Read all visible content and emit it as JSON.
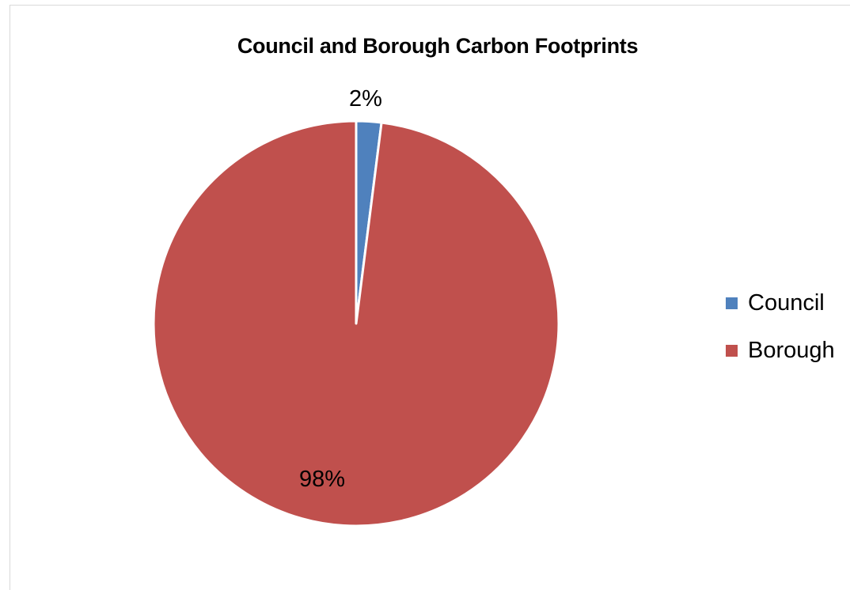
{
  "chart_data": {
    "type": "pie",
    "title": "Council and Borough Carbon Footprints",
    "categories": [
      "Council",
      "Borough"
    ],
    "values": [
      2,
      98
    ],
    "data_labels": [
      "2%",
      "98%"
    ],
    "colors": [
      "#4F81BD",
      "#C0504D"
    ],
    "slice_border_color": "#ffffff",
    "start_angle": "12 o'clock, clockwise",
    "legend_position": "right"
  }
}
